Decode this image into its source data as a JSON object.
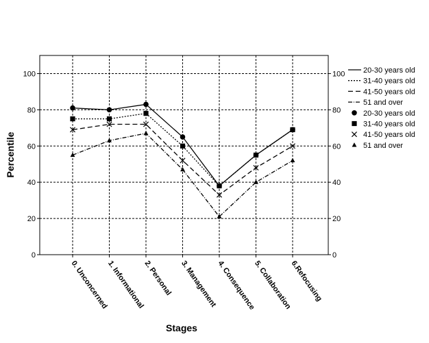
{
  "chart_data": {
    "type": "line",
    "xlabel": "Stages",
    "ylabel": "Percentile",
    "ylim": [
      0,
      110
    ],
    "yticks": [
      0,
      20,
      40,
      60,
      80,
      100
    ],
    "grid": true,
    "legend_position": "right",
    "categories": [
      "0. Unconcerned",
      "1. Informational",
      "2. Personal",
      "3. Management",
      "4. Consequence",
      "5. Collaboration",
      "6.Refocusing"
    ],
    "series": [
      {
        "name": "20-30 years old",
        "line_style": "solid",
        "marker": "circle",
        "values": [
          81,
          80,
          83,
          65,
          38,
          55,
          69
        ]
      },
      {
        "name": "31-40 years old",
        "line_style": "dotted",
        "marker": "square",
        "values": [
          75,
          75,
          78,
          60,
          38,
          55,
          69
        ]
      },
      {
        "name": "41-50 years old",
        "line_style": "dashed",
        "marker": "cross",
        "values": [
          69,
          72,
          72,
          52,
          33,
          48,
          60
        ]
      },
      {
        "name": "51 and over",
        "line_style": "dash-dot",
        "marker": "triangle",
        "values": [
          55,
          63,
          67,
          47,
          21,
          40,
          52
        ]
      }
    ]
  }
}
